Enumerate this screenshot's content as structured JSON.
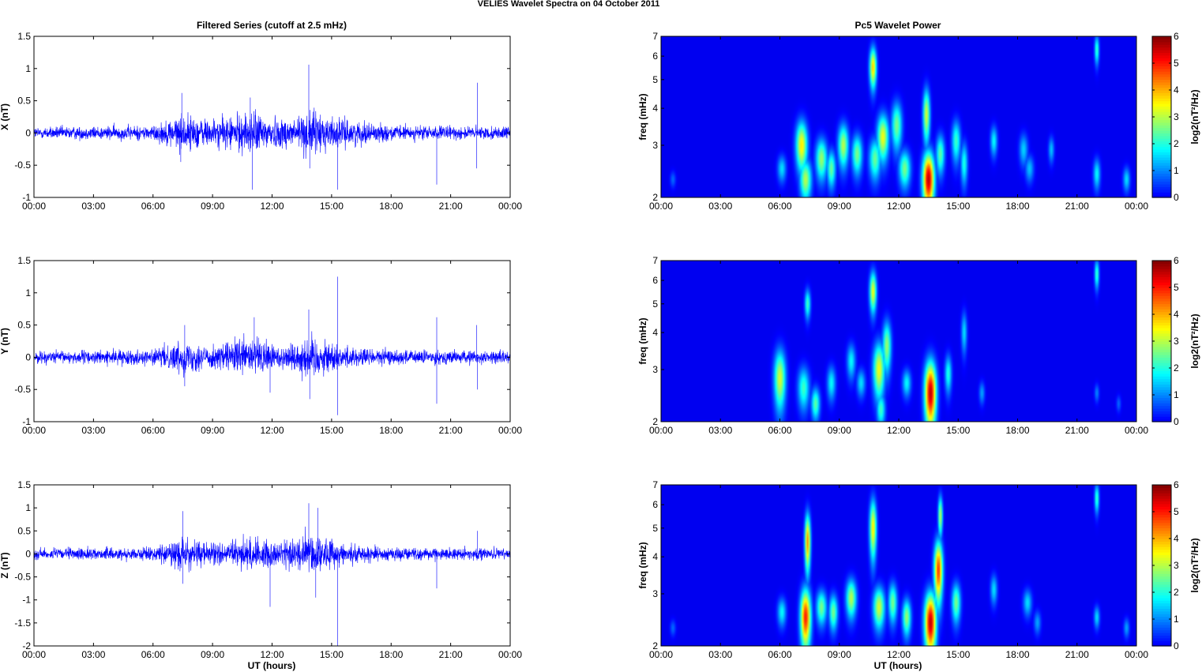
{
  "figure": {
    "title": "VELIES Wavelet Spectra on 04 October   2011",
    "left_title": "Filtered Series (cutoff at 2.5 mHz)",
    "right_title": "Pc5 Wavelet Power",
    "xlabel": "UT (hours)"
  },
  "chart_data": [
    {
      "type": "line",
      "panel": "X",
      "ylabel": "X (nT)",
      "ylim": [
        -1,
        1.5
      ],
      "yticks": [
        "1.5",
        "1",
        "0.5",
        "0",
        "-0.5",
        "-1"
      ],
      "xticks": [
        "00:00",
        "03:00",
        "06:00",
        "09:00",
        "12:00",
        "15:00",
        "18:00",
        "21:00",
        "00:00"
      ],
      "xlim_hours": [
        0,
        24
      ],
      "color": "#0000ff",
      "noise_profile": [
        [
          0,
          0.08
        ],
        [
          6,
          0.1
        ],
        [
          7.5,
          0.25
        ],
        [
          9,
          0.18
        ],
        [
          11,
          0.28
        ],
        [
          12.5,
          0.2
        ],
        [
          14,
          0.3
        ],
        [
          15.5,
          0.18
        ],
        [
          18,
          0.1
        ],
        [
          24,
          0.08
        ]
      ],
      "spikes": [
        [
          7.45,
          0.62
        ],
        [
          7.4,
          -0.45
        ],
        [
          10.9,
          0.55
        ],
        [
          11.0,
          -0.88
        ],
        [
          13.85,
          1.06
        ],
        [
          13.9,
          -0.55
        ],
        [
          15.3,
          -0.88
        ],
        [
          20.3,
          -0.8
        ],
        [
          22.35,
          0.78
        ],
        [
          22.3,
          -0.55
        ],
        [
          24,
          -0.35
        ]
      ]
    },
    {
      "type": "line",
      "panel": "Y",
      "ylabel": "Y (nT)",
      "ylim": [
        -1,
        1.5
      ],
      "yticks": [
        "1.5",
        "1",
        "0.5",
        "0",
        "-0.5",
        "-1"
      ],
      "xticks": [
        "00:00",
        "03:00",
        "06:00",
        "09:00",
        "12:00",
        "15:00",
        "18:00",
        "21:00",
        "00:00"
      ],
      "xlim_hours": [
        0,
        24
      ],
      "color": "#0000ff",
      "noise_profile": [
        [
          0,
          0.08
        ],
        [
          6,
          0.1
        ],
        [
          7.5,
          0.22
        ],
        [
          9,
          0.15
        ],
        [
          11,
          0.28
        ],
        [
          12.5,
          0.15
        ],
        [
          14,
          0.3
        ],
        [
          15.5,
          0.15
        ],
        [
          18,
          0.1
        ],
        [
          24,
          0.08
        ]
      ],
      "spikes": [
        [
          7.6,
          0.5
        ],
        [
          7.6,
          -0.45
        ],
        [
          11.1,
          0.62
        ],
        [
          11.9,
          -0.55
        ],
        [
          13.85,
          0.74
        ],
        [
          13.9,
          -0.65
        ],
        [
          15.3,
          1.25
        ],
        [
          15.3,
          -0.9
        ],
        [
          20.3,
          0.62
        ],
        [
          20.3,
          -0.72
        ],
        [
          22.3,
          0.5
        ],
        [
          22.35,
          -0.5
        ]
      ]
    },
    {
      "type": "line",
      "panel": "Z",
      "ylabel": "Z (nT)",
      "ylim": [
        -2,
        1.5
      ],
      "yticks": [
        "1.5",
        "1",
        "0.5",
        "0",
        "-0.5",
        "-1",
        "-1.5",
        "-2"
      ],
      "xticks": [
        "00:00",
        "03:00",
        "06:00",
        "09:00",
        "12:00",
        "15:00",
        "18:00",
        "21:00",
        "00:00"
      ],
      "xlim_hours": [
        0,
        24
      ],
      "color": "#0000ff",
      "noise_profile": [
        [
          0,
          0.1
        ],
        [
          6,
          0.12
        ],
        [
          7.5,
          0.3
        ],
        [
          9,
          0.2
        ],
        [
          11,
          0.3
        ],
        [
          12.5,
          0.25
        ],
        [
          14,
          0.4
        ],
        [
          15.5,
          0.2
        ],
        [
          18,
          0.12
        ],
        [
          24,
          0.1
        ]
      ],
      "spikes": [
        [
          7.5,
          0.93
        ],
        [
          7.5,
          -0.65
        ],
        [
          11.9,
          -1.15
        ],
        [
          13.85,
          1.1
        ],
        [
          14.3,
          1.0
        ],
        [
          14.2,
          -0.95
        ],
        [
          15.3,
          -2.0
        ],
        [
          20.3,
          -0.75
        ],
        [
          22.35,
          0.5
        ]
      ]
    },
    {
      "type": "heatmap",
      "panel": "X",
      "ylabel": "freq (mHz)",
      "yscale": "log",
      "ylim": [
        2,
        7
      ],
      "yticks": [
        "7",
        "6",
        "5",
        "4",
        "3",
        "2"
      ],
      "xticks": [
        "00:00",
        "03:00",
        "06:00",
        "09:00",
        "12:00",
        "15:00",
        "18:00",
        "21:00",
        "00:00"
      ],
      "colorbar_label": "log2(nT²/Hz)",
      "colorbar_ticks": [
        "6",
        "5",
        "4",
        "3",
        "2",
        "1",
        "0"
      ],
      "clim": [
        0,
        6
      ],
      "blobs": [
        [
          6.1,
          2.5,
          0.15,
          0.18,
          1.6
        ],
        [
          7.1,
          3.0,
          0.2,
          0.4,
          3.6
        ],
        [
          7.3,
          2.3,
          0.2,
          0.25,
          3.0
        ],
        [
          8.1,
          2.7,
          0.2,
          0.3,
          2.8
        ],
        [
          8.6,
          2.5,
          0.15,
          0.25,
          2.5
        ],
        [
          9.2,
          3.0,
          0.18,
          0.35,
          3.0
        ],
        [
          9.9,
          2.8,
          0.18,
          0.3,
          2.6
        ],
        [
          10.7,
          5.5,
          0.12,
          0.6,
          3.8
        ],
        [
          10.8,
          2.7,
          0.2,
          0.3,
          2.5
        ],
        [
          11.2,
          3.2,
          0.2,
          0.4,
          3.4
        ],
        [
          11.9,
          3.5,
          0.18,
          0.45,
          2.6
        ],
        [
          12.3,
          2.5,
          0.2,
          0.25,
          2.6
        ],
        [
          13.5,
          2.3,
          0.2,
          0.35,
          5.6
        ],
        [
          13.4,
          3.8,
          0.12,
          0.55,
          3.2
        ],
        [
          14.1,
          2.8,
          0.15,
          0.3,
          2.4
        ],
        [
          14.9,
          3.1,
          0.15,
          0.35,
          2.2
        ],
        [
          15.3,
          2.6,
          0.12,
          0.3,
          2.0
        ],
        [
          16.8,
          3.1,
          0.12,
          0.25,
          1.8
        ],
        [
          18.3,
          2.9,
          0.15,
          0.25,
          1.5
        ],
        [
          18.6,
          2.5,
          0.15,
          0.18,
          1.4
        ],
        [
          19.7,
          2.9,
          0.1,
          0.2,
          1.4
        ],
        [
          22.0,
          6.3,
          0.08,
          0.5,
          2.2
        ],
        [
          22.0,
          2.4,
          0.12,
          0.2,
          1.8
        ],
        [
          23.5,
          2.3,
          0.12,
          0.15,
          1.6
        ],
        [
          0.6,
          2.3,
          0.1,
          0.1,
          0.8
        ]
      ]
    },
    {
      "type": "heatmap",
      "panel": "Y",
      "ylabel": "freq (mHz)",
      "yscale": "log",
      "ylim": [
        2,
        7
      ],
      "yticks": [
        "7",
        "6",
        "5",
        "4",
        "3",
        "2"
      ],
      "xticks": [
        "00:00",
        "03:00",
        "06:00",
        "09:00",
        "12:00",
        "15:00",
        "18:00",
        "21:00",
        "00:00"
      ],
      "colorbar_label": "log2(nT²/Hz)",
      "colorbar_ticks": [
        "6",
        "5",
        "4",
        "3",
        "2",
        "1",
        "0"
      ],
      "clim": [
        0,
        6
      ],
      "blobs": [
        [
          6.0,
          2.8,
          0.2,
          0.45,
          3.2
        ],
        [
          7.2,
          2.6,
          0.2,
          0.3,
          2.2
        ],
        [
          7.4,
          5.0,
          0.1,
          0.4,
          2.2
        ],
        [
          7.8,
          2.3,
          0.15,
          0.2,
          2.4
        ],
        [
          8.6,
          2.7,
          0.15,
          0.25,
          1.8
        ],
        [
          9.6,
          3.2,
          0.15,
          0.3,
          1.8
        ],
        [
          10.1,
          2.7,
          0.15,
          0.2,
          1.6
        ],
        [
          10.7,
          5.5,
          0.12,
          0.6,
          3.4
        ],
        [
          11.0,
          3.0,
          0.2,
          0.45,
          3.4
        ],
        [
          11.4,
          3.6,
          0.15,
          0.5,
          2.8
        ],
        [
          11.1,
          2.2,
          0.15,
          0.2,
          2.2
        ],
        [
          12.4,
          2.7,
          0.15,
          0.2,
          1.8
        ],
        [
          13.6,
          2.5,
          0.2,
          0.45,
          5.6
        ],
        [
          14.5,
          2.9,
          0.12,
          0.3,
          2.0
        ],
        [
          15.3,
          4.0,
          0.1,
          0.45,
          1.6
        ],
        [
          16.2,
          2.5,
          0.1,
          0.15,
          1.2
        ],
        [
          22.0,
          6.3,
          0.08,
          0.5,
          2.2
        ],
        [
          22.0,
          2.5,
          0.08,
          0.12,
          1.0
        ],
        [
          23.1,
          2.3,
          0.08,
          0.1,
          0.8
        ]
      ]
    },
    {
      "type": "heatmap",
      "panel": "Z",
      "ylabel": "freq (mHz)",
      "yscale": "log",
      "ylim": [
        2,
        7
      ],
      "yticks": [
        "7",
        "6",
        "5",
        "4",
        "3",
        "2"
      ],
      "xticks": [
        "00:00",
        "03:00",
        "06:00",
        "09:00",
        "12:00",
        "15:00",
        "18:00",
        "21:00",
        "00:00"
      ],
      "colorbar_label": "log2(nT²/Hz)",
      "colorbar_ticks": [
        "6",
        "5",
        "4",
        "3",
        "2",
        "1",
        "0"
      ],
      "clim": [
        0,
        6
      ],
      "blobs": [
        [
          6.1,
          2.6,
          0.15,
          0.2,
          1.8
        ],
        [
          7.3,
          2.5,
          0.18,
          0.4,
          5.0
        ],
        [
          7.4,
          4.5,
          0.1,
          0.7,
          4.2
        ],
        [
          8.1,
          2.7,
          0.18,
          0.25,
          2.6
        ],
        [
          8.7,
          2.6,
          0.15,
          0.25,
          2.6
        ],
        [
          9.6,
          2.9,
          0.18,
          0.3,
          3.0
        ],
        [
          10.7,
          5.0,
          0.12,
          0.8,
          3.6
        ],
        [
          11.0,
          2.7,
          0.2,
          0.3,
          3.2
        ],
        [
          11.7,
          2.8,
          0.15,
          0.3,
          2.6
        ],
        [
          12.4,
          2.5,
          0.15,
          0.25,
          2.8
        ],
        [
          13.6,
          2.4,
          0.2,
          0.4,
          5.6
        ],
        [
          14.0,
          3.6,
          0.15,
          0.6,
          4.8
        ],
        [
          14.1,
          5.5,
          0.08,
          0.6,
          3.0
        ],
        [
          14.9,
          2.8,
          0.15,
          0.3,
          2.6
        ],
        [
          16.8,
          3.1,
          0.12,
          0.25,
          1.6
        ],
        [
          18.5,
          2.8,
          0.15,
          0.2,
          1.6
        ],
        [
          19.0,
          2.4,
          0.12,
          0.15,
          1.2
        ],
        [
          22.0,
          6.3,
          0.08,
          0.5,
          2.2
        ],
        [
          22.0,
          2.5,
          0.1,
          0.15,
          1.6
        ],
        [
          23.5,
          2.3,
          0.1,
          0.12,
          1.2
        ],
        [
          0.6,
          2.3,
          0.1,
          0.1,
          0.8
        ]
      ]
    }
  ]
}
